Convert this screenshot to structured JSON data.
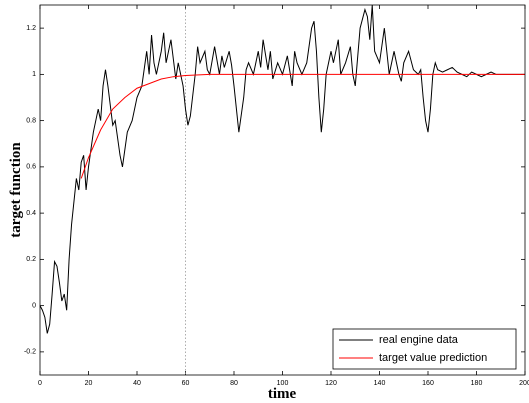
{
  "chart_data": {
    "type": "line",
    "xlabel": "time",
    "ylabel": "target function",
    "xlim": [
      0,
      200
    ],
    "ylim": [
      -0.3,
      1.3
    ],
    "xticks": [
      0,
      20,
      40,
      60,
      80,
      100,
      120,
      140,
      160,
      180,
      200
    ],
    "yticks": [
      -0.2,
      0,
      0.2,
      0.4,
      0.6,
      0.8,
      1,
      1.2
    ],
    "vline": 60,
    "legend": "lower right",
    "series": [
      {
        "name": "real engine data",
        "color": "#000000",
        "x": [
          0,
          1,
          2,
          3,
          4,
          5,
          6,
          7,
          8,
          9,
          10,
          11,
          12,
          13,
          14,
          15,
          16,
          17,
          18,
          19,
          20,
          22,
          24,
          25,
          26,
          27,
          28,
          30,
          31,
          33,
          34,
          36,
          38,
          40,
          42,
          44,
          45,
          46,
          47,
          48,
          50,
          51,
          52,
          54,
          56,
          57,
          59,
          60,
          61,
          62,
          64,
          65,
          66,
          68,
          69,
          70,
          72,
          74,
          75,
          76,
          78,
          79,
          80,
          82,
          84,
          85,
          86,
          88,
          90,
          91,
          92,
          94,
          95,
          96,
          98,
          100,
          102,
          104,
          105,
          106,
          108,
          110,
          112,
          113,
          114,
          115,
          116,
          117,
          118,
          120,
          121,
          123,
          124,
          126,
          128,
          129,
          130,
          132,
          134,
          135,
          136,
          137,
          138,
          140,
          142,
          143,
          144,
          146,
          148,
          149,
          150,
          152,
          154,
          156,
          157,
          158,
          159,
          160,
          161,
          162,
          163,
          164,
          166,
          168,
          170,
          172,
          174,
          176,
          178,
          180,
          182,
          184,
          186,
          188,
          190,
          195,
          200
        ],
        "values": [
          0,
          -0.02,
          -0.05,
          -0.12,
          -0.08,
          0.05,
          0.19,
          0.17,
          0.1,
          0.02,
          0.05,
          -0.02,
          0.2,
          0.35,
          0.45,
          0.55,
          0.5,
          0.62,
          0.65,
          0.5,
          0.6,
          0.75,
          0.85,
          0.8,
          0.95,
          1.02,
          0.95,
          0.78,
          0.8,
          0.65,
          0.6,
          0.75,
          0.8,
          0.9,
          0.95,
          1.1,
          1.0,
          1.17,
          1.05,
          1.0,
          1.1,
          1.18,
          1.05,
          1.15,
          0.98,
          1.05,
          0.95,
          0.85,
          0.78,
          0.82,
          1.0,
          1.12,
          1.05,
          1.1,
          1.02,
          1.0,
          1.12,
          1.0,
          1.08,
          1.03,
          1.1,
          1.04,
          0.95,
          0.75,
          0.9,
          1.02,
          1.05,
          1.0,
          1.1,
          1.03,
          1.15,
          1.02,
          1.1,
          0.98,
          1.05,
          1.0,
          1.08,
          0.95,
          1.1,
          1.05,
          1.0,
          1.05,
          1.2,
          1.23,
          1.1,
          0.9,
          0.75,
          0.85,
          1.0,
          1.1,
          1.05,
          1.15,
          1.0,
          1.05,
          1.12,
          1.0,
          0.95,
          1.2,
          1.28,
          1.25,
          1.15,
          1.3,
          1.1,
          1.05,
          1.2,
          1.1,
          1.0,
          1.1,
          1.0,
          0.97,
          1.05,
          1.1,
          1.02,
          1.0,
          1.02,
          0.9,
          0.8,
          0.75,
          0.85,
          1.0,
          1.05,
          1.02,
          1.01,
          1.02,
          1.03,
          1.01,
          1.0,
          0.99,
          1.01,
          1.0,
          0.99,
          1.0,
          1.01,
          1.0,
          1.0,
          1.0,
          1.0
        ]
      },
      {
        "name": "target value prediction",
        "color": "#ff0000",
        "x": [
          17,
          20,
          25,
          30,
          35,
          40,
          45,
          50,
          55,
          60,
          70,
          80,
          100,
          120,
          140,
          160,
          180,
          200
        ],
        "values": [
          0.55,
          0.64,
          0.76,
          0.85,
          0.9,
          0.94,
          0.96,
          0.98,
          0.99,
          0.995,
          1.0,
          1.0,
          1.0,
          1.0,
          1.0,
          1.0,
          1.0,
          1.0
        ]
      }
    ]
  }
}
